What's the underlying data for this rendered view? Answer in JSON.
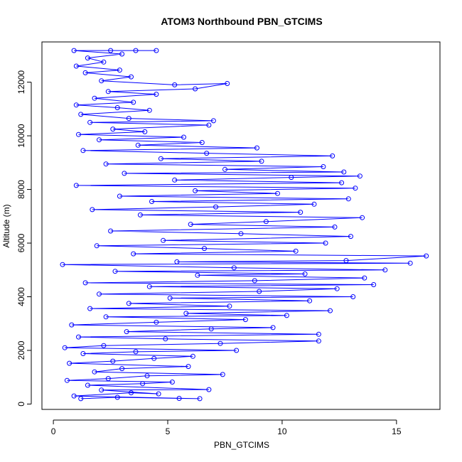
{
  "chart_data": {
    "type": "scatter",
    "title": "ATOM3 Northbound PBN_GTCIMS",
    "xlabel": "PBN_GTCIMS",
    "ylabel": "Altitude (m)",
    "xlim": [
      -0.5,
      16.9
    ],
    "ylim": [
      -200,
      13500
    ],
    "xticks": [
      0,
      5,
      10,
      15
    ],
    "yticks": [
      0,
      2000,
      4000,
      6000,
      8000,
      10000,
      12000
    ],
    "grid": false,
    "marker": "open-circle",
    "line": true,
    "series": [
      {
        "color": "#0000ff",
        "points": [
          [
            1.2,
            200
          ],
          [
            2.8,
            250
          ],
          [
            5.5,
            210
          ],
          [
            6.4,
            200
          ],
          [
            0.9,
            300
          ],
          [
            3.4,
            420
          ],
          [
            4.6,
            380
          ],
          [
            2.1,
            520
          ],
          [
            6.8,
            540
          ],
          [
            1.5,
            700
          ],
          [
            3.9,
            760
          ],
          [
            5.2,
            820
          ],
          [
            0.6,
            880
          ],
          [
            2.4,
            950
          ],
          [
            4.1,
            1050
          ],
          [
            7.4,
            1100
          ],
          [
            1.8,
            1200
          ],
          [
            3.0,
            1320
          ],
          [
            5.9,
            1400
          ],
          [
            0.7,
            1520
          ],
          [
            2.6,
            1600
          ],
          [
            4.4,
            1700
          ],
          [
            6.1,
            1780
          ],
          [
            1.3,
            1880
          ],
          [
            3.6,
            1950
          ],
          [
            8.0,
            2000
          ],
          [
            0.5,
            2100
          ],
          [
            2.2,
            2180
          ],
          [
            7.3,
            2260
          ],
          [
            11.6,
            2350
          ],
          [
            4.9,
            2430
          ],
          [
            1.1,
            2500
          ],
          [
            11.6,
            2600
          ],
          [
            3.2,
            2700
          ],
          [
            6.9,
            2800
          ],
          [
            9.6,
            2850
          ],
          [
            0.8,
            2950
          ],
          [
            4.5,
            3050
          ],
          [
            8.4,
            3150
          ],
          [
            2.3,
            3250
          ],
          [
            10.2,
            3300
          ],
          [
            5.8,
            3380
          ],
          [
            12.1,
            3480
          ],
          [
            1.6,
            3560
          ],
          [
            7.7,
            3650
          ],
          [
            3.3,
            3750
          ],
          [
            11.2,
            3850
          ],
          [
            5.1,
            3950
          ],
          [
            13.1,
            4000
          ],
          [
            2.0,
            4100
          ],
          [
            9.0,
            4200
          ],
          [
            12.4,
            4300
          ],
          [
            4.2,
            4380
          ],
          [
            14.0,
            4450
          ],
          [
            1.4,
            4520
          ],
          [
            8.8,
            4600
          ],
          [
            13.6,
            4700
          ],
          [
            6.3,
            4800
          ],
          [
            11.0,
            4850
          ],
          [
            2.7,
            4950
          ],
          [
            14.5,
            5000
          ],
          [
            7.9,
            5080
          ],
          [
            0.4,
            5200
          ],
          [
            15.6,
            5250
          ],
          [
            5.4,
            5300
          ],
          [
            12.8,
            5350
          ],
          [
            16.3,
            5520
          ],
          [
            3.5,
            5600
          ],
          [
            10.6,
            5700
          ],
          [
            6.6,
            5800
          ],
          [
            1.9,
            5900
          ],
          [
            11.9,
            6000
          ],
          [
            4.8,
            6100
          ],
          [
            13.0,
            6250
          ],
          [
            8.2,
            6350
          ],
          [
            2.5,
            6450
          ],
          [
            12.3,
            6600
          ],
          [
            6.0,
            6700
          ],
          [
            9.3,
            6800
          ],
          [
            13.5,
            6950
          ],
          [
            3.8,
            7050
          ],
          [
            10.8,
            7150
          ],
          [
            1.7,
            7250
          ],
          [
            7.1,
            7350
          ],
          [
            11.4,
            7450
          ],
          [
            4.3,
            7550
          ],
          [
            12.9,
            7650
          ],
          [
            2.9,
            7750
          ],
          [
            9.8,
            7850
          ],
          [
            6.2,
            7950
          ],
          [
            13.2,
            8050
          ],
          [
            1.0,
            8150
          ],
          [
            12.6,
            8250
          ],
          [
            5.3,
            8350
          ],
          [
            10.4,
            8450
          ],
          [
            13.4,
            8500
          ],
          [
            3.1,
            8600
          ],
          [
            12.7,
            8650
          ],
          [
            7.5,
            8750
          ],
          [
            11.8,
            8850
          ],
          [
            2.3,
            8950
          ],
          [
            9.1,
            9050
          ],
          [
            4.7,
            9150
          ],
          [
            12.2,
            9250
          ],
          [
            6.7,
            9350
          ],
          [
            1.3,
            9450
          ],
          [
            8.9,
            9550
          ],
          [
            3.7,
            9650
          ],
          [
            6.5,
            9750
          ],
          [
            2.0,
            9850
          ],
          [
            5.7,
            9950
          ],
          [
            1.1,
            10050
          ],
          [
            4.0,
            10150
          ],
          [
            2.6,
            10250
          ],
          [
            6.8,
            10400
          ],
          [
            1.6,
            10500
          ],
          [
            7.0,
            10560
          ],
          [
            3.3,
            10650
          ],
          [
            1.2,
            10800
          ],
          [
            4.2,
            10950
          ],
          [
            2.8,
            11050
          ],
          [
            1.0,
            11150
          ],
          [
            3.5,
            11250
          ],
          [
            1.8,
            11400
          ],
          [
            4.5,
            11550
          ],
          [
            2.4,
            11650
          ],
          [
            6.2,
            11750
          ],
          [
            7.6,
            11950
          ],
          [
            5.3,
            11900
          ],
          [
            2.1,
            12050
          ],
          [
            3.4,
            12200
          ],
          [
            1.4,
            12350
          ],
          [
            2.9,
            12450
          ],
          [
            1.0,
            12600
          ],
          [
            2.2,
            12750
          ],
          [
            1.5,
            12900
          ],
          [
            3.0,
            13050
          ],
          [
            0.9,
            13180
          ],
          [
            2.5,
            13180
          ],
          [
            3.6,
            13180
          ],
          [
            4.5,
            13180
          ]
        ]
      }
    ]
  }
}
